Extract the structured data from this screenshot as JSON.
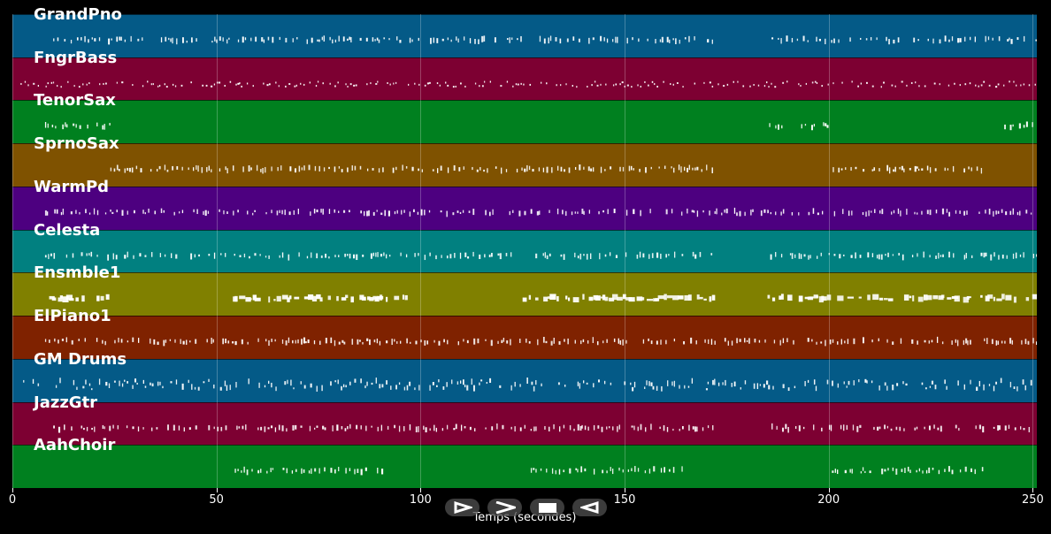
{
  "plot": {
    "x_axis_label": "Temps (secondes)",
    "x_range": [
      0,
      251
    ],
    "x_ticks": [
      0,
      50,
      100,
      150,
      200,
      250
    ],
    "x_tick_labels": [
      "0",
      "50",
      "100",
      "150",
      "200",
      "250"
    ]
  },
  "tracks": [
    {
      "name": "GrandPno",
      "color": "#045a87"
    },
    {
      "name": "FngrBass",
      "color": "#7d0032"
    },
    {
      "name": "TenorSax",
      "color": "#00801f"
    },
    {
      "name": "SprnoSax",
      "color": "#7f5200"
    },
    {
      "name": "WarmPd",
      "color": "#4d0080"
    },
    {
      "name": "Celesta",
      "color": "#018080"
    },
    {
      "name": "Ensmble1",
      "color": "#808000"
    },
    {
      "name": "ElPiano1",
      "color": "#7f2200"
    },
    {
      "name": "GM Drums",
      "color": "#045a87"
    },
    {
      "name": "JazzGtr",
      "color": "#7d0032"
    },
    {
      "name": "AahChoir",
      "color": "#00801f"
    }
  ],
  "controls": {
    "rewind": "rewind-icon",
    "play": "play-icon",
    "stop": "stop-icon",
    "back": "back-icon"
  },
  "note_ranges": [
    [
      [
        10,
        70
      ],
      [
        70,
        172
      ],
      [
        186,
        251
      ]
    ],
    [
      [
        2,
        251
      ]
    ],
    [
      [
        8,
        24
      ],
      [
        185,
        200
      ],
      [
        243,
        250
      ]
    ],
    [
      [
        24,
        172
      ],
      [
        201,
        238
      ]
    ],
    [
      [
        8,
        172
      ],
      [
        172,
        185
      ],
      [
        185,
        251
      ]
    ],
    [
      [
        8,
        172
      ],
      [
        185,
        251
      ]
    ],
    [
      [
        9,
        24
      ],
      [
        54,
        97
      ],
      [
        125,
        172
      ],
      [
        185,
        251
      ]
    ],
    [
      [
        8,
        172
      ],
      [
        172,
        185
      ],
      [
        185,
        251
      ]
    ],
    [
      [
        2,
        251
      ]
    ],
    [
      [
        10,
        172
      ],
      [
        186,
        250
      ]
    ],
    [
      [
        54,
        92
      ],
      [
        127,
        165
      ],
      [
        200,
        238
      ]
    ]
  ]
}
